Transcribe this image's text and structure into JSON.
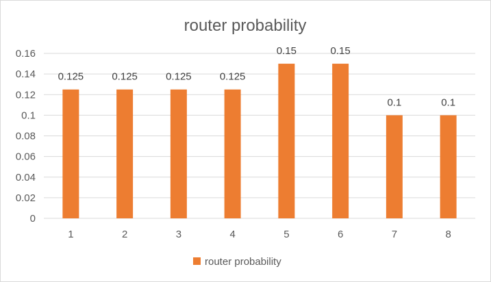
{
  "chart_data": {
    "type": "bar",
    "title": "router probability",
    "xlabel": "",
    "ylabel": "",
    "categories": [
      "1",
      "2",
      "3",
      "4",
      "5",
      "6",
      "7",
      "8"
    ],
    "series": [
      {
        "name": "router probability",
        "values": [
          0.125,
          0.125,
          0.125,
          0.125,
          0.15,
          0.15,
          0.1,
          0.1
        ],
        "labels": [
          "0.125",
          "0.125",
          "0.125",
          "0.125",
          "0.15",
          "0.15",
          "0.1",
          "0.1"
        ],
        "color": "#ED7D31"
      }
    ],
    "ylim": [
      0,
      0.16
    ],
    "yticks": [
      0,
      0.02,
      0.04,
      0.06,
      0.08,
      0.1,
      0.12,
      0.14,
      0.16
    ],
    "ytick_labels": [
      "0",
      "0.02",
      "0.04",
      "0.06",
      "0.08",
      "0.1",
      "0.12",
      "0.14",
      "0.16"
    ],
    "grid": true,
    "gridColor": "#d9d9d9",
    "legend_position": "bottom"
  }
}
